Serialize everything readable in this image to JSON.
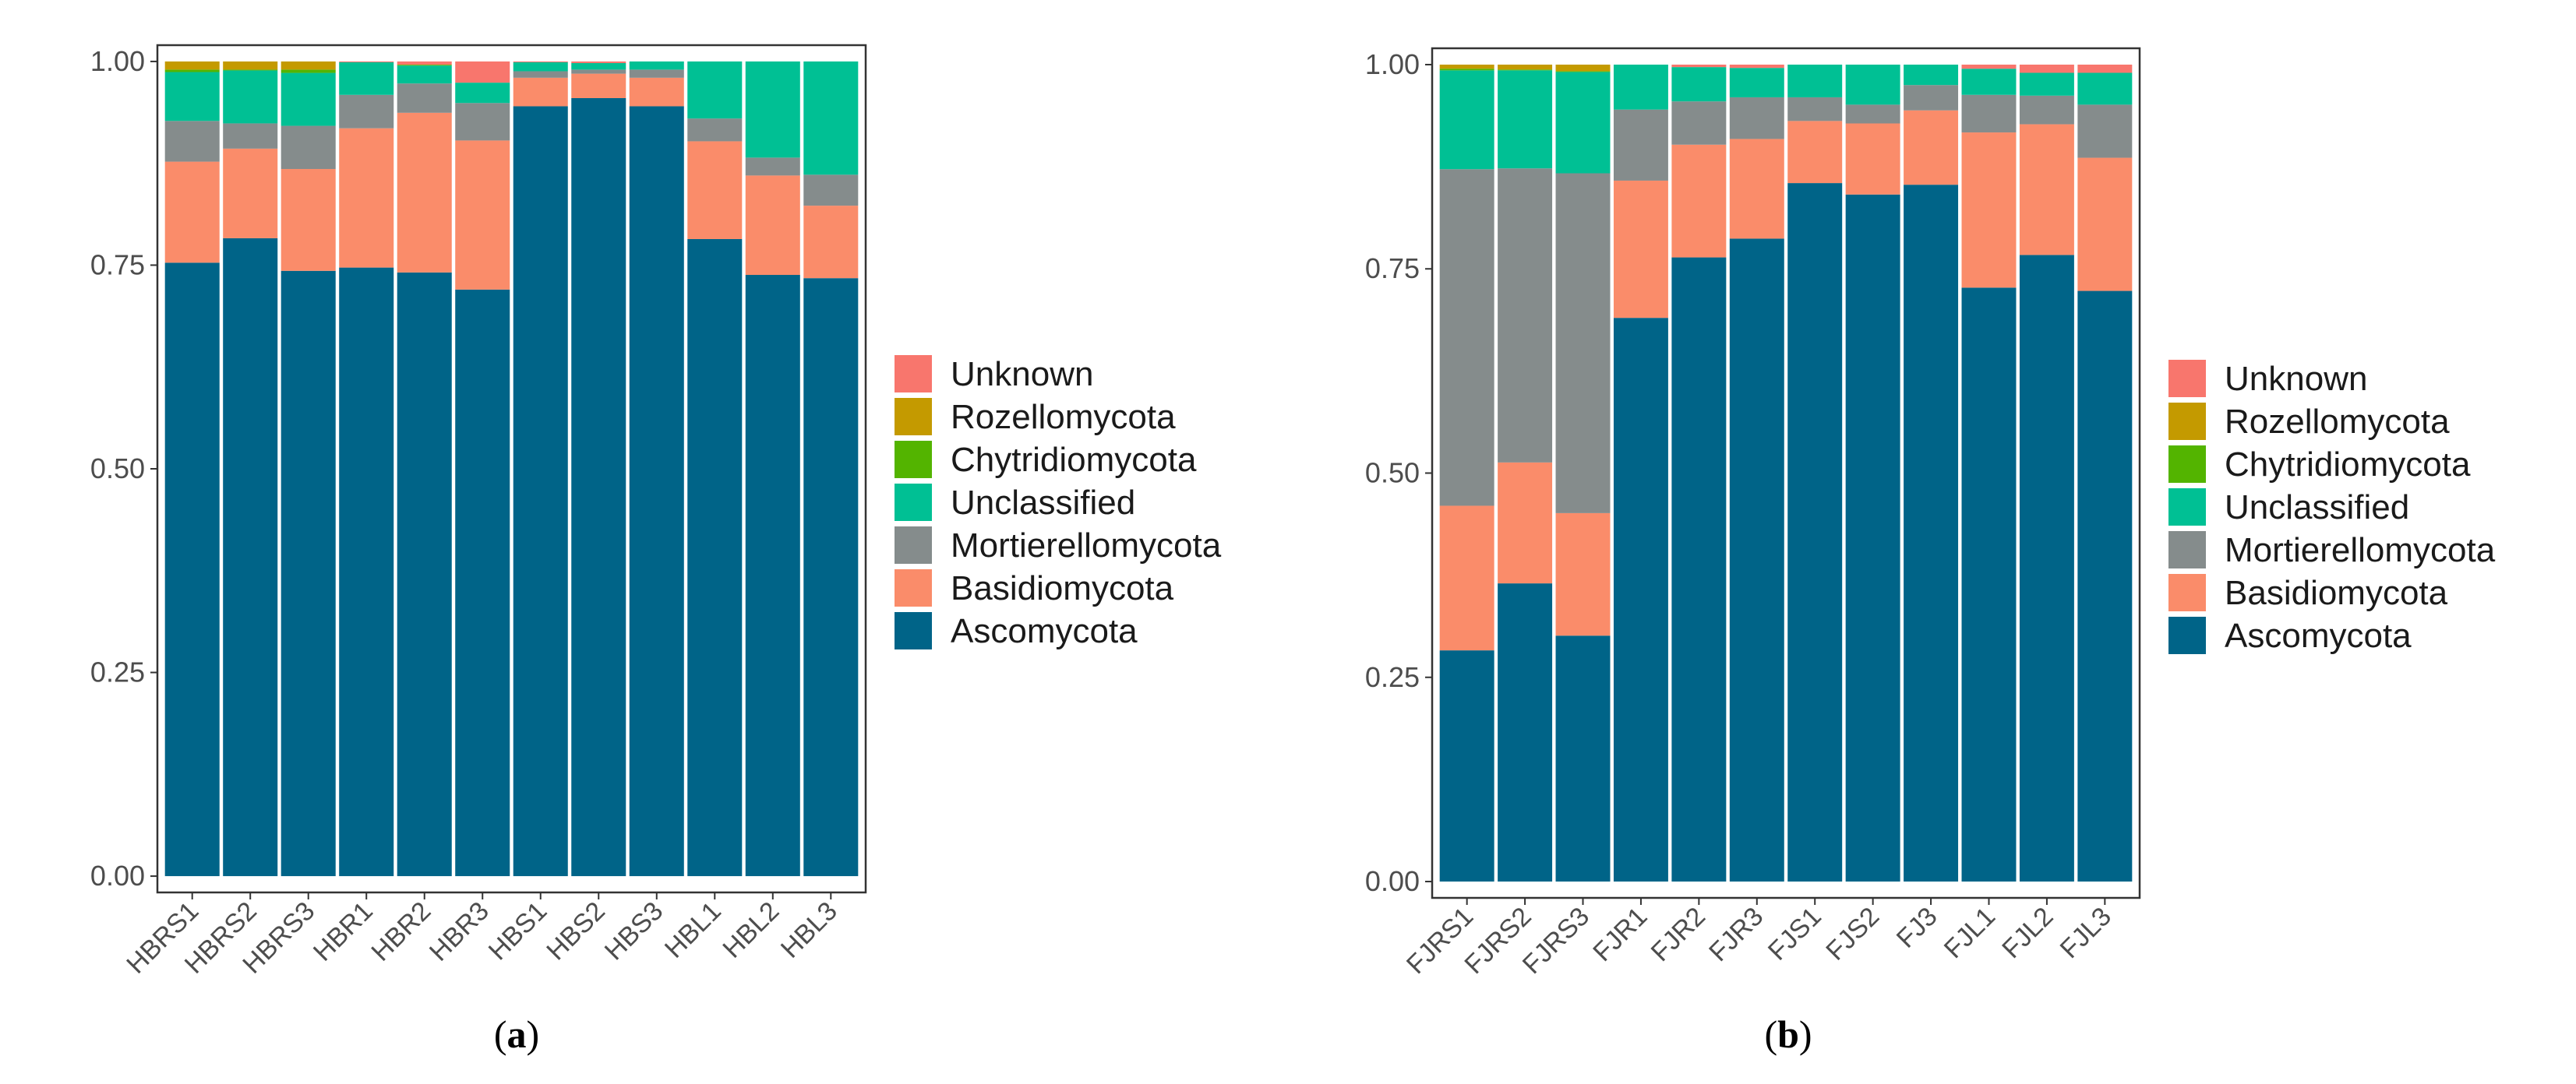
{
  "legend": {
    "title": "",
    "items": [
      {
        "name": "Unknown",
        "color": "#F8766D"
      },
      {
        "name": "Rozellomycota",
        "color": "#C49A00"
      },
      {
        "name": "Chytridiomycota",
        "color": "#53B400"
      },
      {
        "name": "Unclassified",
        "color": "#00C094"
      },
      {
        "name": "Mortierellomycota",
        "color": "#858C8C"
      },
      {
        "name": "Basidiomycota",
        "color": "#FA8C6A"
      },
      {
        "name": "Ascomycota",
        "color": "#006488"
      }
    ]
  },
  "panels": [
    {
      "label_open": "(",
      "label_letter": "a",
      "label_close": ")"
    },
    {
      "label_open": "(",
      "label_letter": "b",
      "label_close": ")"
    }
  ],
  "chart_data": [
    {
      "type": "bar",
      "stacked": true,
      "title": "",
      "xlabel": "",
      "ylabel": "",
      "ylim": [
        0,
        1
      ],
      "yticks": [
        "0.00",
        "0.25",
        "0.50",
        "0.75",
        "1.00"
      ],
      "categories": [
        "HBRS1",
        "HBRS2",
        "HBRS3",
        "HBR1",
        "HBR2",
        "HBR3",
        "HBS1",
        "HBS2",
        "HBS3",
        "HBL1",
        "HBL2",
        "HBL3"
      ],
      "series": [
        {
          "name": "Ascomycota",
          "values": [
            0.753,
            0.783,
            0.743,
            0.747,
            0.741,
            0.72,
            0.945,
            0.955,
            0.945,
            0.782,
            0.738,
            0.734
          ]
        },
        {
          "name": "Basidiomycota",
          "values": [
            0.124,
            0.11,
            0.125,
            0.171,
            0.196,
            0.183,
            0.035,
            0.03,
            0.035,
            0.12,
            0.122,
            0.089
          ]
        },
        {
          "name": "Mortierellomycota",
          "values": [
            0.05,
            0.031,
            0.053,
            0.041,
            0.036,
            0.046,
            0.008,
            0.005,
            0.01,
            0.028,
            0.022,
            0.038
          ]
        },
        {
          "name": "Unclassified",
          "values": [
            0.06,
            0.065,
            0.065,
            0.04,
            0.022,
            0.025,
            0.011,
            0.008,
            0.01,
            0.07,
            0.118,
            0.139
          ]
        },
        {
          "name": "Chytridiomycota",
          "values": [
            0.003,
            0.001,
            0.004,
            0.0,
            0.001,
            0.0,
            0.0,
            0.0,
            0.0,
            0.0,
            0.0,
            0.0
          ]
        },
        {
          "name": "Rozellomycota",
          "values": [
            0.01,
            0.01,
            0.01,
            0.0,
            0.0,
            0.0,
            0.0,
            0.0,
            0.0,
            0.0,
            0.0,
            0.0
          ]
        },
        {
          "name": "Unknown",
          "values": [
            0.0,
            0.0,
            0.0,
            0.001,
            0.004,
            0.026,
            0.001,
            0.002,
            0.0,
            0.0,
            0.0,
            0.0
          ]
        }
      ]
    },
    {
      "type": "bar",
      "stacked": true,
      "title": "",
      "xlabel": "",
      "ylabel": "",
      "ylim": [
        0,
        1
      ],
      "yticks": [
        "0.00",
        "0.25",
        "0.50",
        "0.75",
        "1.00"
      ],
      "categories": [
        "FJRS1",
        "FJRS2",
        "FJRS3",
        "FJR1",
        "FJR2",
        "FJR3",
        "FJS1",
        "FJS2",
        "FJ3",
        "FJL1",
        "FJL2",
        "FJL3"
      ],
      "series": [
        {
          "name": "Ascomycota",
          "values": [
            0.283,
            0.365,
            0.301,
            0.69,
            0.764,
            0.787,
            0.855,
            0.841,
            0.853,
            0.727,
            0.767,
            0.723
          ]
        },
        {
          "name": "Basidiomycota",
          "values": [
            0.177,
            0.148,
            0.15,
            0.168,
            0.138,
            0.122,
            0.076,
            0.087,
            0.091,
            0.19,
            0.16,
            0.163
          ]
        },
        {
          "name": "Mortierellomycota",
          "values": [
            0.412,
            0.36,
            0.416,
            0.087,
            0.053,
            0.051,
            0.029,
            0.023,
            0.031,
            0.046,
            0.035,
            0.065
          ]
        },
        {
          "name": "Unclassified",
          "values": [
            0.121,
            0.12,
            0.124,
            0.055,
            0.042,
            0.036,
            0.04,
            0.049,
            0.025,
            0.032,
            0.028,
            0.039
          ]
        },
        {
          "name": "Chytridiomycota",
          "values": [
            0.002,
            0.001,
            0.001,
            0.0,
            0.0,
            0.0,
            0.0,
            0.0,
            0.0,
            0.0,
            0.0,
            0.0
          ]
        },
        {
          "name": "Rozellomycota",
          "values": [
            0.005,
            0.006,
            0.008,
            0.0,
            0.0,
            0.0,
            0.0,
            0.0,
            0.0,
            0.0,
            0.0,
            0.0
          ]
        },
        {
          "name": "Unknown",
          "values": [
            0.0,
            0.0,
            0.0,
            0.0,
            0.003,
            0.004,
            0.0,
            0.0,
            0.0,
            0.005,
            0.01,
            0.01
          ]
        }
      ]
    }
  ]
}
